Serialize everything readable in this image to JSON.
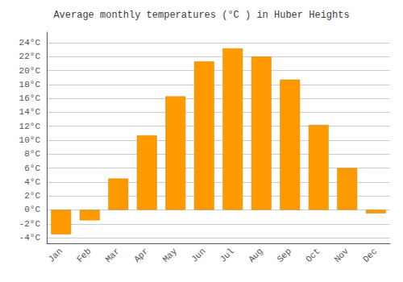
{
  "chart_data": {
    "type": "bar",
    "title": "Average monthly temperatures (°C ) in Huber Heights",
    "categories": [
      "Jan",
      "Feb",
      "Mar",
      "Apr",
      "May",
      "Jun",
      "Jul",
      "Aug",
      "Sep",
      "Oct",
      "Nov",
      "Dec"
    ],
    "values": [
      -3.5,
      -1.5,
      4.5,
      10.7,
      16.3,
      21.3,
      23.2,
      22.0,
      18.7,
      12.2,
      6.0,
      -0.5
    ],
    "color": "#FF9900",
    "ylim": [
      -4.8,
      25.5
    ],
    "yticks": [
      {
        "value": -4,
        "label": "-4°C"
      },
      {
        "value": -2,
        "label": "-2°C"
      },
      {
        "value": 0,
        "label": "0°C"
      },
      {
        "value": 2,
        "label": "2°C"
      },
      {
        "value": 4,
        "label": "4°C"
      },
      {
        "value": 6,
        "label": "6°C"
      },
      {
        "value": 8,
        "label": "8°C"
      },
      {
        "value": 10,
        "label": "10°C"
      },
      {
        "value": 12,
        "label": "12°C"
      },
      {
        "value": 14,
        "label": "14°C"
      },
      {
        "value": 16,
        "label": "16°C"
      },
      {
        "value": 18,
        "label": "18°C"
      },
      {
        "value": 20,
        "label": "20°C"
      },
      {
        "value": 22,
        "label": "22°C"
      },
      {
        "value": 24,
        "label": "24°C"
      }
    ],
    "grid": true
  }
}
